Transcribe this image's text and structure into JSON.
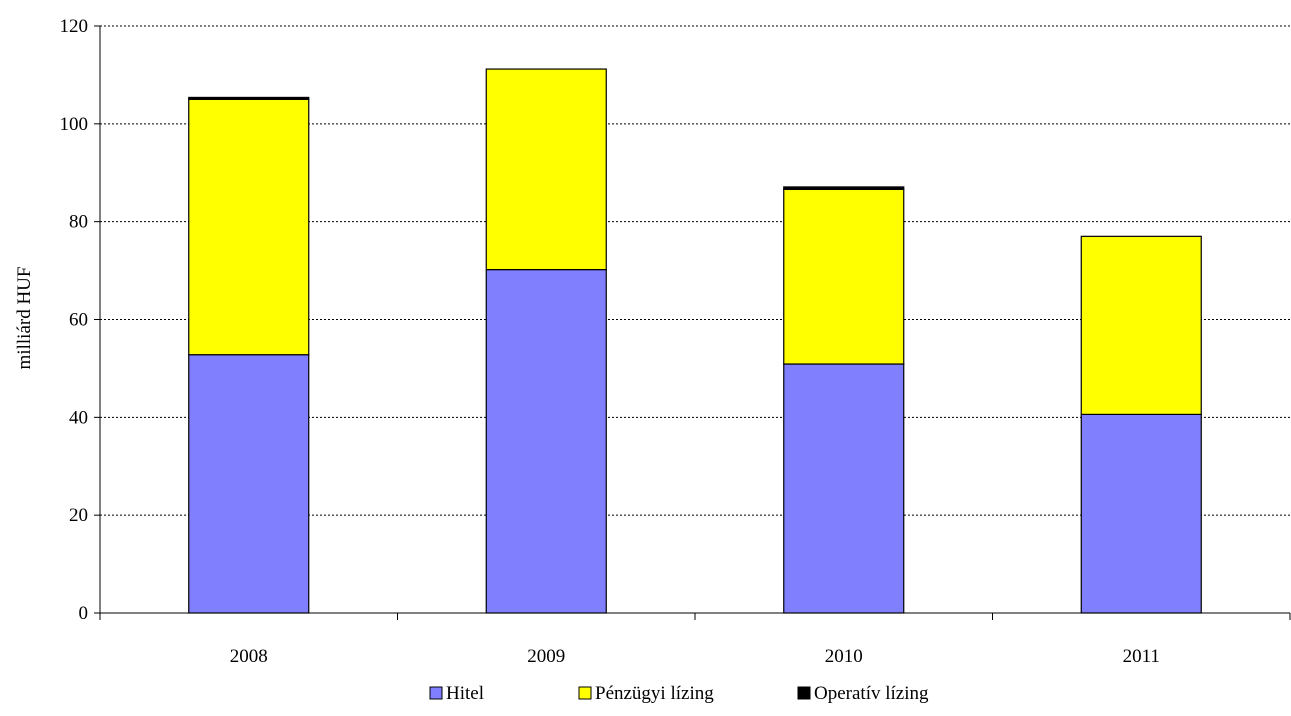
{
  "chart_data": {
    "type": "bar",
    "stacked": true,
    "title": "",
    "xlabel": "",
    "ylabel": "milliárd HUF",
    "ylim": [
      0,
      120
    ],
    "yticks": [
      0,
      20,
      40,
      60,
      80,
      100,
      120
    ],
    "grid": "horizontal dotted",
    "legend_position": "bottom",
    "categories": [
      "2008",
      "2009",
      "2010",
      "2011"
    ],
    "series": [
      {
        "name": "Hitel",
        "color": "#8080ff",
        "values": [
          52.8,
          70.2,
          50.9,
          40.6
        ]
      },
      {
        "name": "Pénzügyi lízing",
        "color": "#ffff00",
        "values": [
          52.2,
          41.0,
          35.7,
          36.4
        ]
      },
      {
        "name": "Operatív lízing",
        "color": "#000000",
        "values": [
          0.4,
          0.0,
          0.5,
          0.0
        ]
      }
    ]
  }
}
